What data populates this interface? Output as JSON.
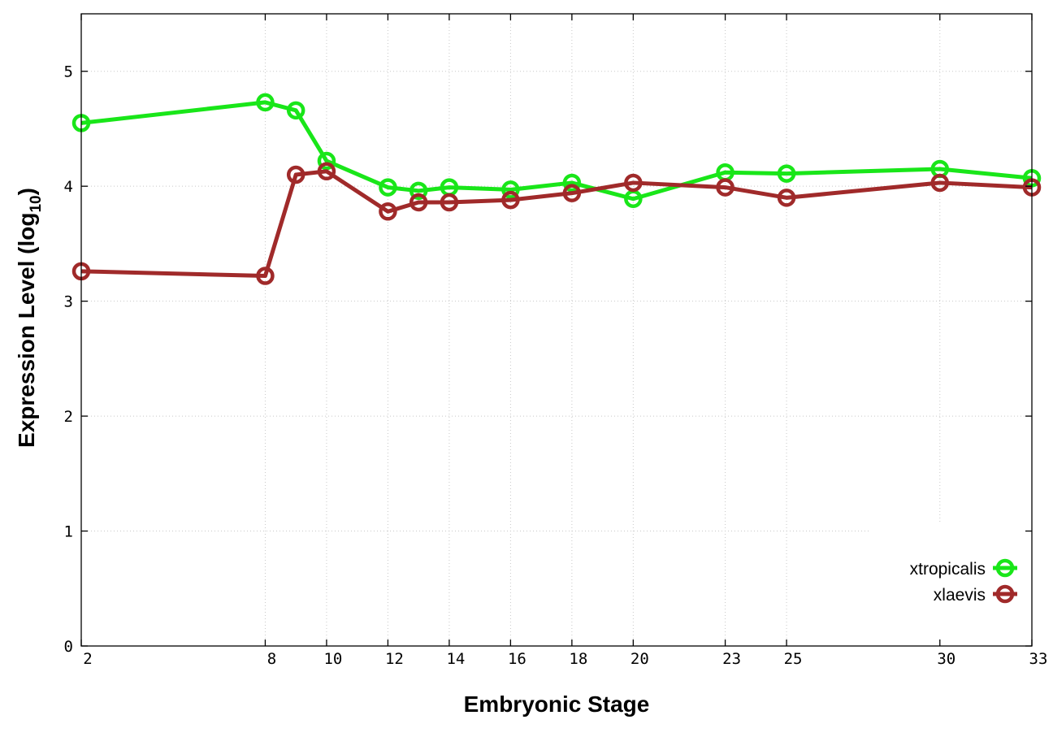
{
  "chart_data": {
    "type": "line",
    "xlabel": "Embryonic Stage",
    "ylabel_main": "Expression Level (log",
    "ylabel_sub": "10",
    "ylabel_close": ")",
    "xlim": [
      2,
      33
    ],
    "ylim": [
      0,
      5.5
    ],
    "xticks": [
      2,
      8,
      10,
      12,
      14,
      16,
      18,
      20,
      23,
      25,
      30,
      33
    ],
    "yticks": [
      0,
      1,
      2,
      3,
      4,
      5
    ],
    "grid": true,
    "legend_position": "bottom-right",
    "series": [
      {
        "name": "xtropicalis",
        "color": "#19e619",
        "points": [
          {
            "x": 2,
            "y": 4.55
          },
          {
            "x": 8,
            "y": 4.73
          },
          {
            "x": 9,
            "y": 4.66
          },
          {
            "x": 10,
            "y": 4.22
          },
          {
            "x": 12,
            "y": 3.99
          },
          {
            "x": 13,
            "y": 3.96
          },
          {
            "x": 14,
            "y": 3.99
          },
          {
            "x": 16,
            "y": 3.97
          },
          {
            "x": 18,
            "y": 4.03
          },
          {
            "x": 20,
            "y": 3.89
          },
          {
            "x": 23,
            "y": 4.12
          },
          {
            "x": 25,
            "y": 4.11
          },
          {
            "x": 30,
            "y": 4.15
          },
          {
            "x": 33,
            "y": 4.07
          }
        ]
      },
      {
        "name": "xlaevis",
        "color": "#a02a2a",
        "points": [
          {
            "x": 2,
            "y": 3.26
          },
          {
            "x": 8,
            "y": 3.22
          },
          {
            "x": 9,
            "y": 4.1
          },
          {
            "x": 10,
            "y": 4.13
          },
          {
            "x": 12,
            "y": 3.78
          },
          {
            "x": 13,
            "y": 3.86
          },
          {
            "x": 14,
            "y": 3.86
          },
          {
            "x": 16,
            "y": 3.88
          },
          {
            "x": 18,
            "y": 3.94
          },
          {
            "x": 20,
            "y": 4.03
          },
          {
            "x": 23,
            "y": 3.99
          },
          {
            "x": 25,
            "y": 3.9
          },
          {
            "x": 30,
            "y": 4.03
          },
          {
            "x": 33,
            "y": 3.99
          }
        ]
      }
    ]
  }
}
